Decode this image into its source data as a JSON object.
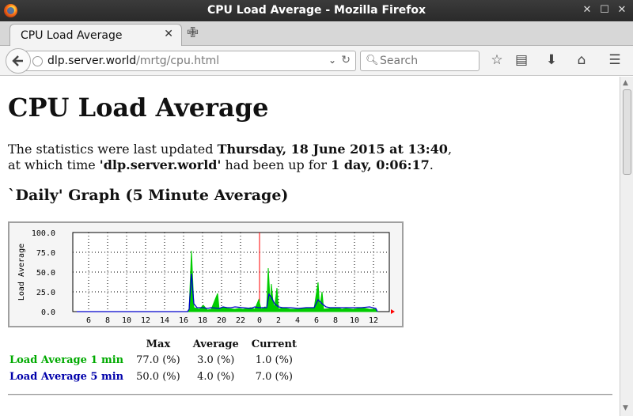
{
  "window": {
    "title": "CPU Load Average - Mozilla Firefox"
  },
  "tab": {
    "title": "CPU Load Average"
  },
  "navbar": {
    "url_host": "dlp.server.world",
    "url_path": "/mrtg/cpu.html",
    "search_placeholder": "Search"
  },
  "page": {
    "heading": "CPU Load Average",
    "updated_prefix": "The statistics were last updated ",
    "updated_time": "Thursday, 18 June 2015 at 13:40",
    "updated_suffix": ",",
    "uptime_prefix": "at which time ",
    "host": "'dlp.server.world'",
    "uptime_mid": " had been up for ",
    "uptime": "1 day, 0:06:17",
    "uptime_suffix": ".",
    "graph_heading": "`Daily' Graph (5 Minute Average)"
  },
  "chart_data": {
    "type": "area",
    "ylabel": "Load Average",
    "ylim": [
      0,
      100
    ],
    "yticks": [
      "100.0",
      "75.0",
      "50.0",
      "25.0",
      "0.0"
    ],
    "x_ticks": [
      "6",
      "8",
      "10",
      "12",
      "14",
      "16",
      "18",
      "20",
      "22",
      "0",
      "2",
      "4",
      "6",
      "8",
      "10",
      "12"
    ],
    "grid": true,
    "colors": {
      "load1": "#00cc00",
      "load5": "#0000cc",
      "midnight": "#ff0000",
      "background": "#f5f5f5"
    },
    "series": [
      {
        "name": "Load Average 1 min",
        "points": [
          [
            0,
            0
          ],
          [
            14,
            0
          ],
          [
            14.2,
            2
          ],
          [
            14.5,
            77
          ],
          [
            14.8,
            5
          ],
          [
            15.5,
            3
          ],
          [
            16,
            8
          ],
          [
            16.5,
            2
          ],
          [
            17,
            3
          ],
          [
            17.8,
            23
          ],
          [
            18,
            3
          ],
          [
            18.5,
            6
          ],
          [
            19,
            4
          ],
          [
            20,
            3
          ],
          [
            20.5,
            4
          ],
          [
            21,
            3
          ],
          [
            22,
            5
          ],
          [
            22.5,
            3
          ],
          [
            23,
            15
          ],
          [
            23.3,
            3
          ],
          [
            23.8,
            6
          ],
          [
            24,
            3
          ],
          [
            24.2,
            55
          ],
          [
            24.4,
            20
          ],
          [
            24.5,
            8
          ],
          [
            24.6,
            35
          ],
          [
            24.8,
            12
          ],
          [
            25,
            5
          ],
          [
            25.3,
            30
          ],
          [
            25.5,
            3
          ],
          [
            26,
            5
          ],
          [
            27,
            3
          ],
          [
            28,
            3
          ],
          [
            29,
            5
          ],
          [
            30,
            4
          ],
          [
            30.5,
            37
          ],
          [
            30.7,
            4
          ],
          [
            31,
            25
          ],
          [
            31.2,
            3
          ],
          [
            32,
            4
          ],
          [
            33,
            5
          ],
          [
            33.5,
            3
          ],
          [
            34,
            4
          ],
          [
            35,
            3
          ],
          [
            36,
            5
          ],
          [
            37,
            3
          ],
          [
            37.8,
            3
          ],
          [
            38,
            0
          ]
        ]
      },
      {
        "name": "Load Average 5 min",
        "points": [
          [
            0,
            0
          ],
          [
            14,
            0
          ],
          [
            14.2,
            3
          ],
          [
            14.5,
            48
          ],
          [
            14.8,
            10
          ],
          [
            15.2,
            5
          ],
          [
            16,
            5
          ],
          [
            16.5,
            4
          ],
          [
            17,
            5
          ],
          [
            18,
            4
          ],
          [
            18.5,
            6
          ],
          [
            19,
            5
          ],
          [
            19.5,
            5
          ],
          [
            20,
            6
          ],
          [
            21,
            5
          ],
          [
            22,
            4
          ],
          [
            22.5,
            6
          ],
          [
            23,
            5
          ],
          [
            24,
            5
          ],
          [
            24.3,
            22
          ],
          [
            24.6,
            18
          ],
          [
            25,
            10
          ],
          [
            25.5,
            6
          ],
          [
            26,
            5
          ],
          [
            27,
            5
          ],
          [
            28,
            4
          ],
          [
            29,
            5
          ],
          [
            30,
            5
          ],
          [
            30.5,
            15
          ],
          [
            31,
            10
          ],
          [
            31.5,
            6
          ],
          [
            32,
            5
          ],
          [
            33,
            5
          ],
          [
            34,
            5
          ],
          [
            35,
            5
          ],
          [
            36,
            5
          ],
          [
            37,
            6
          ],
          [
            37.8,
            4
          ],
          [
            38,
            0
          ]
        ]
      }
    ],
    "legend": {
      "headers": [
        "Max",
        "Average",
        "Current"
      ],
      "rows": [
        {
          "label": "Load Average 1 min",
          "max": "77.0 (%)",
          "average": "3.0 (%)",
          "current": "1.0 (%)"
        },
        {
          "label": "Load Average 5 min",
          "max": "50.0 (%)",
          "average": "4.0 (%)",
          "current": "7.0 (%)"
        }
      ]
    }
  }
}
